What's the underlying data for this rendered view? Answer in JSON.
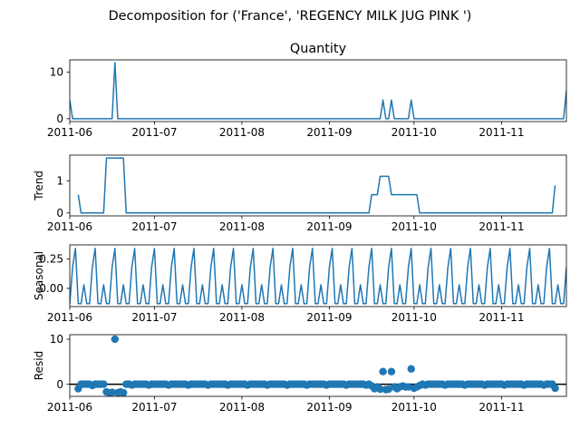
{
  "figure": {
    "suptitle": "Decomposition for ('France', 'REGENCY MILK JUG PINK ')",
    "line_color": "#1f77b4",
    "axis_color": "#000000"
  },
  "chart_data": [
    {
      "type": "line",
      "panel": "observed",
      "title": "Quantity",
      "ylabel": "",
      "xlim": [
        "2011-06-01",
        "2011-11-24"
      ],
      "ylim": [
        -0.6,
        12.6
      ],
      "yticks": [
        0,
        10
      ],
      "xticks": [
        "2011-06",
        "2011-07",
        "2011-08",
        "2011-09",
        "2011-10",
        "2011-11"
      ],
      "x_start": "2011-06-01",
      "series": [
        {
          "points": [
            [
              "2011-06-01",
              4
            ],
            [
              "2011-06-02",
              0
            ],
            [
              "2011-06-16",
              0
            ],
            [
              "2011-06-17",
              12
            ],
            [
              "2011-06-18",
              0
            ],
            [
              "2011-09-19",
              0
            ],
            [
              "2011-09-20",
              4
            ],
            [
              "2011-09-21",
              0
            ],
            [
              "2011-09-22",
              0
            ],
            [
              "2011-09-23",
              4
            ],
            [
              "2011-09-24",
              0
            ],
            [
              "2011-09-29",
              0
            ],
            [
              "2011-09-30",
              4
            ],
            [
              "2011-10-01",
              0
            ],
            [
              "2011-11-23",
              0
            ],
            [
              "2011-11-24",
              6
            ]
          ]
        }
      ]
    },
    {
      "type": "line",
      "panel": "trend",
      "title": "",
      "ylabel": "Trend",
      "xlim": [
        "2011-06-01",
        "2011-11-24"
      ],
      "ylim": [
        -0.09,
        1.8
      ],
      "yticks": [
        0,
        1
      ],
      "xticks": [
        "2011-06",
        "2011-07",
        "2011-08",
        "2011-09",
        "2011-10",
        "2011-11"
      ],
      "series": [
        {
          "points": [
            [
              "2011-06-04",
              0.57
            ],
            [
              "2011-06-05",
              0
            ],
            [
              "2011-06-13",
              0
            ],
            [
              "2011-06-14",
              1.71
            ],
            [
              "2011-06-20",
              1.71
            ],
            [
              "2011-06-21",
              0
            ],
            [
              "2011-09-15",
              0
            ],
            [
              "2011-09-16",
              0.57
            ],
            [
              "2011-09-18",
              0.57
            ],
            [
              "2011-09-19",
              1.14
            ],
            [
              "2011-09-22",
              1.14
            ],
            [
              "2011-09-23",
              0.57
            ],
            [
              "2011-10-02",
              0.57
            ],
            [
              "2011-10-03",
              0
            ],
            [
              "2011-11-19",
              0
            ],
            [
              "2011-11-20",
              0.86
            ]
          ]
        }
      ]
    },
    {
      "type": "line",
      "panel": "seasonal",
      "title": "",
      "ylabel": "Seasonal",
      "xlim": [
        "2011-06-01",
        "2011-11-24"
      ],
      "ylim": [
        -0.155,
        0.37
      ],
      "yticks": [
        -0.0,
        0.25
      ],
      "ytick_labels": [
        "0.00",
        "0.25"
      ],
      "xticks": [
        "2011-06",
        "2011-07",
        "2011-08",
        "2011-09",
        "2011-10",
        "2011-11"
      ],
      "period": 7,
      "period_pattern": [
        -0.13,
        0.18,
        0.34,
        -0.13,
        -0.13,
        0.03,
        -0.13
      ],
      "first_date": "2011-06-01",
      "last_date": "2011-11-24"
    },
    {
      "type": "scatter",
      "panel": "resid",
      "title": "",
      "ylabel": "Resid",
      "xlim": [
        "2011-06-01",
        "2011-11-24"
      ],
      "ylim": [
        -2.7,
        11.0
      ],
      "yticks": [
        0,
        10
      ],
      "baseline": 0,
      "xticks": [
        "2011-06",
        "2011-07",
        "2011-08",
        "2011-09",
        "2011-10",
        "2011-11"
      ],
      "points": [
        [
          "2011-06-04",
          -1.0
        ],
        [
          "2011-06-05",
          0.0
        ],
        [
          "2011-06-06",
          0.0
        ],
        [
          "2011-06-07",
          0.0
        ],
        [
          "2011-06-08",
          0.0
        ],
        [
          "2011-06-09",
          -0.3
        ],
        [
          "2011-06-10",
          0.0
        ],
        [
          "2011-06-11",
          0.0
        ],
        [
          "2011-06-12",
          0.0
        ],
        [
          "2011-06-13",
          0.0
        ],
        [
          "2011-06-14",
          -1.7
        ],
        [
          "2011-06-15",
          -1.9
        ],
        [
          "2011-06-16",
          -1.8
        ],
        [
          "2011-06-17",
          10.0
        ],
        [
          "2011-06-18",
          -1.9
        ],
        [
          "2011-06-19",
          -1.7
        ],
        [
          "2011-06-20",
          -1.9
        ],
        [
          "2011-06-21",
          0.0
        ],
        [
          "2011-06-22",
          0.0
        ],
        [
          "2011-06-23",
          -0.2
        ],
        [
          "2011-06-24",
          0.0
        ],
        [
          "2011-06-25",
          0.0
        ],
        [
          "2011-06-26",
          0.0
        ],
        [
          "2011-06-27",
          0.0
        ],
        [
          "2011-06-28",
          0.0
        ],
        [
          "2011-06-29",
          -0.2
        ],
        [
          "2011-06-30",
          0.0
        ],
        [
          "2011-07-01",
          0.0
        ],
        [
          "2011-07-02",
          0.0
        ],
        [
          "2011-07-03",
          0.0
        ],
        [
          "2011-07-04",
          0.0
        ],
        [
          "2011-07-05",
          0.0
        ],
        [
          "2011-07-06",
          -0.2
        ],
        [
          "2011-07-07",
          0.0
        ],
        [
          "2011-07-08",
          0.0
        ],
        [
          "2011-07-09",
          0.0
        ],
        [
          "2011-07-10",
          0.0
        ],
        [
          "2011-07-11",
          0.0
        ],
        [
          "2011-07-12",
          0.0
        ],
        [
          "2011-07-13",
          -0.2
        ],
        [
          "2011-07-14",
          0.0
        ],
        [
          "2011-07-15",
          0.0
        ],
        [
          "2011-07-16",
          0.0
        ],
        [
          "2011-07-17",
          0.0
        ],
        [
          "2011-07-18",
          0.0
        ],
        [
          "2011-07-19",
          0.0
        ],
        [
          "2011-07-20",
          -0.2
        ],
        [
          "2011-07-21",
          0.0
        ],
        [
          "2011-07-22",
          0.0
        ],
        [
          "2011-07-23",
          0.0
        ],
        [
          "2011-07-24",
          0.0
        ],
        [
          "2011-07-25",
          0.0
        ],
        [
          "2011-07-26",
          0.0
        ],
        [
          "2011-07-27",
          -0.2
        ],
        [
          "2011-07-28",
          0.0
        ],
        [
          "2011-07-29",
          0.0
        ],
        [
          "2011-07-30",
          0.0
        ],
        [
          "2011-07-31",
          0.0
        ],
        [
          "2011-08-01",
          0.0
        ],
        [
          "2011-08-02",
          0.0
        ],
        [
          "2011-08-03",
          -0.2
        ],
        [
          "2011-08-04",
          0.0
        ],
        [
          "2011-08-05",
          0.0
        ],
        [
          "2011-08-06",
          0.0
        ],
        [
          "2011-08-07",
          0.0
        ],
        [
          "2011-08-08",
          0.0
        ],
        [
          "2011-08-09",
          0.0
        ],
        [
          "2011-08-10",
          -0.2
        ],
        [
          "2011-08-11",
          0.0
        ],
        [
          "2011-08-12",
          0.0
        ],
        [
          "2011-08-13",
          0.0
        ],
        [
          "2011-08-14",
          0.0
        ],
        [
          "2011-08-15",
          0.0
        ],
        [
          "2011-08-16",
          0.0
        ],
        [
          "2011-08-17",
          -0.2
        ],
        [
          "2011-08-18",
          0.0
        ],
        [
          "2011-08-19",
          0.0
        ],
        [
          "2011-08-20",
          0.0
        ],
        [
          "2011-08-21",
          0.0
        ],
        [
          "2011-08-22",
          0.0
        ],
        [
          "2011-08-23",
          0.0
        ],
        [
          "2011-08-24",
          -0.2
        ],
        [
          "2011-08-25",
          0.0
        ],
        [
          "2011-08-26",
          0.0
        ],
        [
          "2011-08-27",
          0.0
        ],
        [
          "2011-08-28",
          0.0
        ],
        [
          "2011-08-29",
          0.0
        ],
        [
          "2011-08-30",
          0.0
        ],
        [
          "2011-08-31",
          -0.2
        ],
        [
          "2011-09-01",
          0.0
        ],
        [
          "2011-09-02",
          0.0
        ],
        [
          "2011-09-03",
          0.0
        ],
        [
          "2011-09-04",
          0.0
        ],
        [
          "2011-09-05",
          0.0
        ],
        [
          "2011-09-06",
          0.0
        ],
        [
          "2011-09-07",
          -0.2
        ],
        [
          "2011-09-08",
          0.0
        ],
        [
          "2011-09-09",
          0.0
        ],
        [
          "2011-09-10",
          0.0
        ],
        [
          "2011-09-11",
          0.0
        ],
        [
          "2011-09-12",
          0.0
        ],
        [
          "2011-09-13",
          0.0
        ],
        [
          "2011-09-14",
          -0.2
        ],
        [
          "2011-09-15",
          0.0
        ],
        [
          "2011-09-16",
          -0.4
        ],
        [
          "2011-09-17",
          -1.0
        ],
        [
          "2011-09-18",
          -0.6
        ],
        [
          "2011-09-19",
          -1.1
        ],
        [
          "2011-09-20",
          2.8
        ],
        [
          "2011-09-21",
          -1.2
        ],
        [
          "2011-09-22",
          -1.1
        ],
        [
          "2011-09-23",
          2.8
        ],
        [
          "2011-09-24",
          -0.6
        ],
        [
          "2011-09-25",
          -1.0
        ],
        [
          "2011-09-26",
          -0.6
        ],
        [
          "2011-09-27",
          -0.4
        ],
        [
          "2011-09-28",
          -0.6
        ],
        [
          "2011-09-29",
          -0.6
        ],
        [
          "2011-09-30",
          3.4
        ],
        [
          "2011-10-01",
          -0.9
        ],
        [
          "2011-10-02",
          -0.6
        ],
        [
          "2011-10-03",
          -0.3
        ],
        [
          "2011-10-04",
          0.0
        ],
        [
          "2011-10-05",
          -0.2
        ],
        [
          "2011-10-06",
          0.0
        ],
        [
          "2011-10-07",
          0.0
        ],
        [
          "2011-10-08",
          0.0
        ],
        [
          "2011-10-09",
          0.0
        ],
        [
          "2011-10-10",
          0.0
        ],
        [
          "2011-10-11",
          0.0
        ],
        [
          "2011-10-12",
          -0.2
        ],
        [
          "2011-10-13",
          0.0
        ],
        [
          "2011-10-14",
          0.0
        ],
        [
          "2011-10-15",
          0.0
        ],
        [
          "2011-10-16",
          0.0
        ],
        [
          "2011-10-17",
          0.0
        ],
        [
          "2011-10-18",
          0.0
        ],
        [
          "2011-10-19",
          -0.2
        ],
        [
          "2011-10-20",
          0.0
        ],
        [
          "2011-10-21",
          0.0
        ],
        [
          "2011-10-22",
          0.0
        ],
        [
          "2011-10-23",
          0.0
        ],
        [
          "2011-10-24",
          0.0
        ],
        [
          "2011-10-25",
          0.0
        ],
        [
          "2011-10-26",
          -0.2
        ],
        [
          "2011-10-27",
          0.0
        ],
        [
          "2011-10-28",
          0.0
        ],
        [
          "2011-10-29",
          0.0
        ],
        [
          "2011-10-30",
          0.0
        ],
        [
          "2011-10-31",
          0.0
        ],
        [
          "2011-11-01",
          0.0
        ],
        [
          "2011-11-02",
          -0.2
        ],
        [
          "2011-11-03",
          0.0
        ],
        [
          "2011-11-04",
          0.0
        ],
        [
          "2011-11-05",
          0.0
        ],
        [
          "2011-11-06",
          0.0
        ],
        [
          "2011-11-07",
          0.0
        ],
        [
          "2011-11-08",
          0.0
        ],
        [
          "2011-11-09",
          -0.2
        ],
        [
          "2011-11-10",
          0.0
        ],
        [
          "2011-11-11",
          0.0
        ],
        [
          "2011-11-12",
          0.0
        ],
        [
          "2011-11-13",
          0.0
        ],
        [
          "2011-11-14",
          0.0
        ],
        [
          "2011-11-15",
          0.0
        ],
        [
          "2011-11-16",
          -0.2
        ],
        [
          "2011-11-17",
          0.0
        ],
        [
          "2011-11-18",
          0.0
        ],
        [
          "2011-11-19",
          0.0
        ],
        [
          "2011-11-20",
          -0.9
        ]
      ]
    }
  ]
}
